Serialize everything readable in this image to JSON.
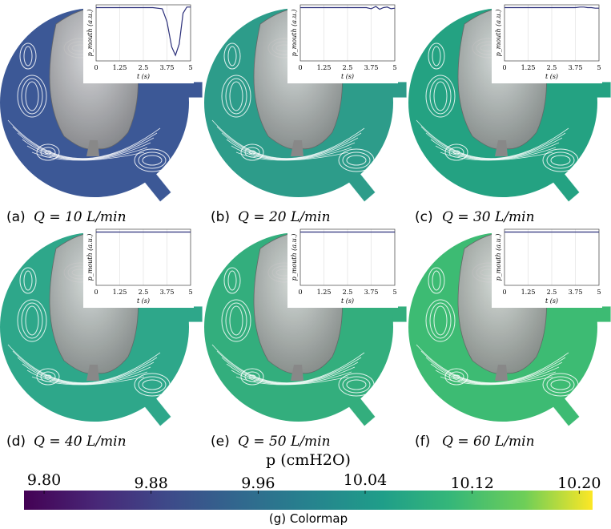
{
  "panels": [
    {
      "label": "(a)",
      "caption": "Q = 10 L/min",
      "color": "#3c5896",
      "inset": {
        "type": "line",
        "ylabel": "p_mouth (a.u.)",
        "xlabel": "t (s)",
        "xlim": [
          0,
          5
        ],
        "ylim": [
          0,
          1
        ],
        "xticks": [
          0,
          1.25,
          2.5,
          3.75,
          5
        ],
        "color": "#2b2f7a",
        "x": [
          0,
          0.5,
          1,
          1.5,
          2,
          2.5,
          3,
          3.5,
          3.75,
          4,
          4.2,
          4.4,
          4.6,
          4.8,
          5
        ],
        "values": [
          0.95,
          0.95,
          0.95,
          0.95,
          0.95,
          0.95,
          0.95,
          0.93,
          0.7,
          0.25,
          0.1,
          0.3,
          0.85,
          0.96,
          0.96
        ]
      }
    },
    {
      "label": "(b)",
      "caption": "Q = 20 L/min",
      "color": "#2d9c8a",
      "inset": {
        "type": "line",
        "ylabel": "p_mouth (a.u.)",
        "xlabel": "t (s)",
        "xlim": [
          0,
          5
        ],
        "ylim": [
          0,
          1
        ],
        "xticks": [
          0,
          1.25,
          2.5,
          3.75,
          5
        ],
        "color": "#2b2f7a",
        "x": [
          0,
          0.5,
          1,
          1.5,
          2,
          2.5,
          3,
          3.5,
          3.75,
          4,
          4.2,
          4.4,
          4.6,
          4.8,
          5
        ],
        "values": [
          0.95,
          0.95,
          0.95,
          0.95,
          0.95,
          0.95,
          0.95,
          0.95,
          0.93,
          0.97,
          0.92,
          0.95,
          0.96,
          0.93,
          0.94
        ]
      }
    },
    {
      "label": "(c)",
      "caption": "Q = 30 L/min",
      "color": "#24a282",
      "inset": {
        "type": "line",
        "ylabel": "p_mouth (a.u.)",
        "xlabel": "t (s)",
        "xlim": [
          0,
          5
        ],
        "ylim": [
          0,
          1
        ],
        "xticks": [
          0,
          1.25,
          2.5,
          3.75,
          5
        ],
        "color": "#2b2f7a",
        "x": [
          0,
          0.5,
          1,
          1.5,
          2,
          2.5,
          3,
          3.5,
          3.75,
          4,
          4.2,
          4.4,
          4.6,
          4.8,
          5
        ],
        "values": [
          0.95,
          0.95,
          0.95,
          0.95,
          0.95,
          0.95,
          0.95,
          0.95,
          0.95,
          0.96,
          0.96,
          0.95,
          0.95,
          0.94,
          0.94
        ]
      }
    },
    {
      "label": "(d)",
      "caption": "Q = 40 L/min",
      "color": "#2ea78a",
      "inset": {
        "type": "line",
        "ylabel": "p_mouth (a.u.)",
        "xlabel": "t (s)",
        "xlim": [
          0,
          5
        ],
        "ylim": [
          0,
          1
        ],
        "xticks": [
          0,
          1.25,
          2.5,
          3.75,
          5
        ],
        "color": "#2b2f7a",
        "x": [
          0,
          0.5,
          1,
          1.5,
          2,
          2.5,
          3,
          3.5,
          3.75,
          4,
          4.2,
          4.4,
          4.6,
          4.8,
          5
        ],
        "values": [
          0.95,
          0.95,
          0.95,
          0.95,
          0.95,
          0.95,
          0.95,
          0.95,
          0.95,
          0.95,
          0.95,
          0.95,
          0.95,
          0.95,
          0.95
        ]
      }
    },
    {
      "label": "(e)",
      "caption": "Q = 50 L/min",
      "color": "#33ae7d",
      "inset": {
        "type": "line",
        "ylabel": "p_mouth (a.u.)",
        "xlabel": "t (s)",
        "xlim": [
          0,
          5
        ],
        "ylim": [
          0,
          1
        ],
        "xticks": [
          0,
          1.25,
          2.5,
          3.75,
          5
        ],
        "color": "#2b2f7a",
        "x": [
          0,
          0.5,
          1,
          1.5,
          2,
          2.5,
          3,
          3.5,
          3.75,
          4,
          4.2,
          4.4,
          4.6,
          4.8,
          5
        ],
        "values": [
          0.95,
          0.95,
          0.95,
          0.95,
          0.95,
          0.95,
          0.95,
          0.95,
          0.95,
          0.95,
          0.95,
          0.95,
          0.95,
          0.95,
          0.95
        ]
      }
    },
    {
      "label": "(f)",
      "caption": "Q = 60 L/min",
      "color": "#3dbb73",
      "inset": {
        "type": "line",
        "ylabel": "p_mouth (a.u.)",
        "xlabel": "t (s)",
        "xlim": [
          0,
          5
        ],
        "ylim": [
          0,
          1
        ],
        "xticks": [
          0,
          1.25,
          2.5,
          3.75,
          5
        ],
        "color": "#2b2f7a",
        "x": [
          0,
          0.5,
          1,
          1.5,
          2,
          2.5,
          3,
          3.5,
          3.75,
          4,
          4.2,
          4.4,
          4.6,
          4.8,
          5
        ],
        "values": [
          0.95,
          0.95,
          0.95,
          0.95,
          0.95,
          0.95,
          0.95,
          0.95,
          0.95,
          0.95,
          0.95,
          0.95,
          0.95,
          0.95,
          0.95
        ]
      }
    }
  ],
  "colorbar": {
    "title": "p (cmH2O)",
    "caption": "(g)  Colormap",
    "clim": [
      9.785,
      10.21
    ],
    "ticks": [
      {
        "value": 9.8,
        "label": "9.80"
      },
      {
        "value": 9.88,
        "label": "9.88"
      },
      {
        "value": 9.96,
        "label": "9.96"
      },
      {
        "value": 10.04,
        "label": "10.04"
      },
      {
        "value": 10.12,
        "label": "10.12"
      },
      {
        "value": 10.2,
        "label": "10.20"
      }
    ]
  }
}
